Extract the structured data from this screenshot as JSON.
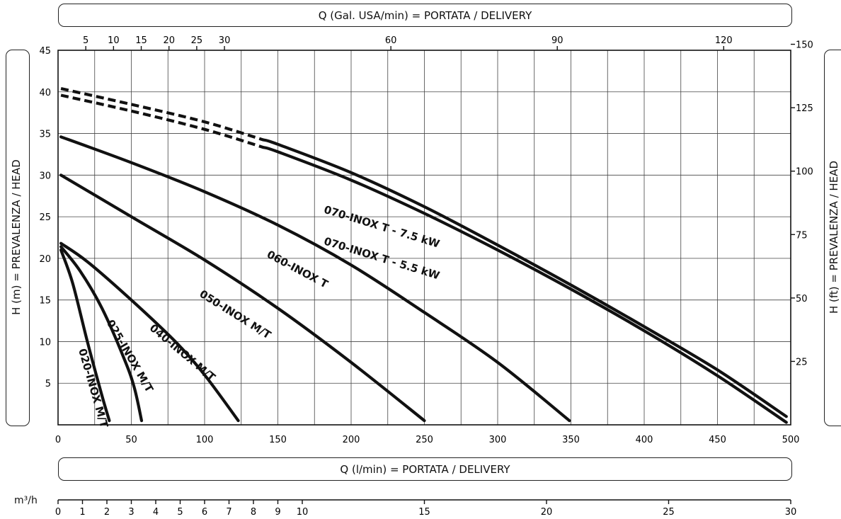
{
  "header": {
    "top_axis_title": "Q (Gal. USA/min) = PORTATA / DELIVERY",
    "bottom_axis_title": "Q (l/min) = PORTATA / DELIVERY",
    "left_axis_title": "H (m) = PREVALENZA / HEAD",
    "right_axis_title": "H (ft) = PREVALENZA / HEAD",
    "m3h_label": "m³/h"
  },
  "chart_data": {
    "type": "line",
    "x_unit": "l/min",
    "y_unit": "m",
    "xlim": [
      0,
      500
    ],
    "ylim": [
      0,
      45
    ],
    "grid": true,
    "x_ticks": [
      "0",
      "50",
      "100",
      "150",
      "200",
      "250",
      "300",
      "350",
      "400",
      "450",
      "500"
    ],
    "y_ticks": [
      "5",
      "10",
      "15",
      "20",
      "25",
      "30",
      "35",
      "40",
      "45"
    ],
    "gal_ticks": [
      {
        "label": "5",
        "v": 5
      },
      {
        "label": "10",
        "v": 10
      },
      {
        "label": "15",
        "v": 15
      },
      {
        "label": "20",
        "v": 20
      },
      {
        "label": "25",
        "v": 25
      },
      {
        "label": "30",
        "v": 30
      },
      {
        "label": "60",
        "v": 60
      },
      {
        "label": "90",
        "v": 90
      },
      {
        "label": "120",
        "v": 120
      }
    ],
    "ft_ticks": [
      {
        "label": "25",
        "v": 25
      },
      {
        "label": "50",
        "v": 50
      },
      {
        "label": "75",
        "v": 75
      },
      {
        "label": "100",
        "v": 100
      },
      {
        "label": "125",
        "v": 125
      },
      {
        "label": "150",
        "v": 150
      }
    ],
    "m3h_ticks": [
      {
        "label": "0",
        "v": 0
      },
      {
        "label": "1",
        "v": 1
      },
      {
        "label": "2",
        "v": 2
      },
      {
        "label": "3",
        "v": 3
      },
      {
        "label": "4",
        "v": 4
      },
      {
        "label": "5",
        "v": 5
      },
      {
        "label": "6",
        "v": 6
      },
      {
        "label": "7",
        "v": 7
      },
      {
        "label": "8",
        "v": 8
      },
      {
        "label": "9",
        "v": 9
      },
      {
        "label": "10",
        "v": 10
      },
      {
        "label": "15",
        "v": 15
      },
      {
        "label": "20",
        "v": 20
      },
      {
        "label": "25",
        "v": 25
      },
      {
        "label": "30",
        "v": 30
      }
    ],
    "series": [
      {
        "name": "020-INOX M/T",
        "x": [
          2,
          10,
          20,
          30,
          35
        ],
        "y": [
          21,
          17,
          10,
          3.5,
          0.5
        ]
      },
      {
        "name": "025-INOX M/T",
        "x": [
          2,
          15,
          30,
          45,
          52,
          57
        ],
        "y": [
          21.4,
          18.5,
          14,
          8,
          4.5,
          0.5
        ]
      },
      {
        "name": "040-INOX M/T",
        "x": [
          2,
          20,
          50,
          80,
          100,
          123
        ],
        "y": [
          21.8,
          19.6,
          15,
          10,
          6,
          0.5
        ]
      },
      {
        "name": "050-INOX M/T",
        "x": [
          2,
          50,
          100,
          150,
          200,
          250
        ],
        "y": [
          30,
          25,
          19.8,
          14,
          7.5,
          0.5
        ]
      },
      {
        "name": "060-INOX T",
        "x": [
          2,
          50,
          100,
          150,
          200,
          250,
          300,
          349
        ],
        "y": [
          34.6,
          31.5,
          28,
          24,
          19.2,
          13.5,
          7.5,
          0.5
        ]
      },
      {
        "name": "070-INOX T - 7.5 kW",
        "x": [
          2,
          50,
          100,
          150,
          200,
          250,
          300,
          350,
          400,
          450,
          497
        ],
        "y": [
          40.4,
          38.5,
          36.4,
          33.7,
          30.3,
          26.2,
          21.6,
          16.8,
          11.8,
          6.6,
          1
        ]
      },
      {
        "name": "070-INOX T - 5.5 kW",
        "x": [
          2,
          50,
          100,
          150,
          200,
          250,
          300,
          350,
          400,
          450,
          497
        ],
        "y": [
          39.6,
          37.7,
          35.5,
          32.8,
          29.4,
          25.4,
          21,
          16.3,
          11.3,
          5.9,
          0.3
        ]
      }
    ],
    "curve_labels": [
      {
        "text": "020-INOX M/T",
        "x": 14,
        "y": 9,
        "angle": 74
      },
      {
        "text": "025-INOX M/T",
        "x": 33,
        "y": 12.3,
        "angle": 60
      },
      {
        "text": "040-INOX M/T",
        "x": 62,
        "y": 11.5,
        "angle": 40
      },
      {
        "text": "050-INOX M/T",
        "x": 96,
        "y": 15.5,
        "angle": 32
      },
      {
        "text": "060-INOX T",
        "x": 142,
        "y": 20.2,
        "angle": 28
      },
      {
        "text": "070-INOX T - 7.5 kW",
        "x": 181,
        "y": 25.5,
        "angle": 17
      },
      {
        "text": "070-INOX T - 5.5 kW",
        "x": 181,
        "y": 21.7,
        "angle": 17
      }
    ]
  }
}
